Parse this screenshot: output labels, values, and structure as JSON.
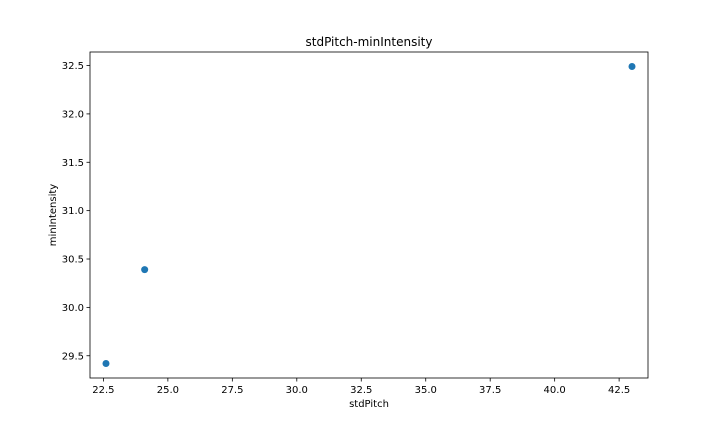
{
  "chart_data": {
    "type": "scatter",
    "title": "stdPitch-minIntensity",
    "xlabel": "stdPitch",
    "ylabel": "minIntensity",
    "xlim": [
      21.98,
      43.62
    ],
    "ylim": [
      29.27,
      32.64
    ],
    "x_ticks": [
      "22.5",
      "25.0",
      "27.5",
      "30.0",
      "32.5",
      "35.0",
      "37.5",
      "40.0",
      "42.5"
    ],
    "y_ticks": [
      "29.5",
      "30.0",
      "30.5",
      "31.0",
      "31.5",
      "32.0",
      "32.5"
    ],
    "grid": false,
    "series": [
      {
        "color": "#1f77b4",
        "points": [
          {
            "x": 22.6,
            "y": 29.42
          },
          {
            "x": 24.1,
            "y": 30.39
          },
          {
            "x": 43.0,
            "y": 32.49
          }
        ]
      }
    ]
  }
}
